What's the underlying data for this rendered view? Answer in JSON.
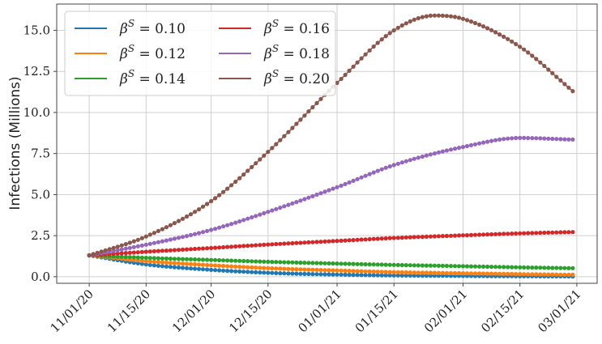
{
  "chart_data": {
    "type": "line",
    "ylabel": "Infections (Millions)",
    "xlabel": "",
    "x_tick_labels": [
      "11/01/20",
      "11/15/20",
      "12/01/20",
      "12/15/20",
      "01/01/21",
      "01/15/21",
      "02/01/21",
      "02/15/21",
      "03/01/21"
    ],
    "x_tick_dates": [
      "2020-11-01",
      "2020-11-15",
      "2020-12-01",
      "2020-12-15",
      "2021-01-01",
      "2021-01-15",
      "2021-02-01",
      "2021-02-15",
      "2021-03-01"
    ],
    "xlim": [
      "2020-10-24",
      "2021-03-06"
    ],
    "y_ticks": [
      "0.0",
      "2.5",
      "5.0",
      "7.5",
      "10.0",
      "12.5",
      "15.0"
    ],
    "ylim": [
      -0.4,
      16.6
    ],
    "grid": true,
    "legend_position": "top-left",
    "series": [
      {
        "name": "β^S = 0.10",
        "color": "#1f77b4",
        "points": [
          [
            "2020-11-01",
            1.3
          ],
          [
            "2020-11-15",
            0.75
          ],
          [
            "2020-12-01",
            0.42
          ],
          [
            "2020-12-15",
            0.24
          ],
          [
            "2021-01-01",
            0.13
          ],
          [
            "2021-01-15",
            0.08
          ],
          [
            "2021-02-01",
            0.05
          ],
          [
            "2021-02-15",
            0.03
          ],
          [
            "2021-02-28",
            0.02
          ]
        ]
      },
      {
        "name": "β^S = 0.12",
        "color": "#ff7f0e",
        "points": [
          [
            "2020-11-01",
            1.3
          ],
          [
            "2020-11-15",
            0.95
          ],
          [
            "2020-12-01",
            0.7
          ],
          [
            "2020-12-15",
            0.52
          ],
          [
            "2021-01-01",
            0.38
          ],
          [
            "2021-01-15",
            0.28
          ],
          [
            "2021-02-01",
            0.21
          ],
          [
            "2021-02-15",
            0.16
          ],
          [
            "2021-02-28",
            0.12
          ]
        ]
      },
      {
        "name": "β^S = 0.14",
        "color": "#2ca02c",
        "points": [
          [
            "2020-11-01",
            1.3
          ],
          [
            "2020-11-15",
            1.15
          ],
          [
            "2020-12-01",
            1.02
          ],
          [
            "2020-12-15",
            0.91
          ],
          [
            "2021-01-01",
            0.8
          ],
          [
            "2021-01-15",
            0.72
          ],
          [
            "2021-02-01",
            0.64
          ],
          [
            "2021-02-15",
            0.57
          ],
          [
            "2021-02-28",
            0.52
          ]
        ]
      },
      {
        "name": "β^S = 0.16",
        "color": "#d62728",
        "points": [
          [
            "2020-11-01",
            1.3
          ],
          [
            "2020-11-15",
            1.52
          ],
          [
            "2020-12-01",
            1.75
          ],
          [
            "2020-12-15",
            1.96
          ],
          [
            "2021-01-01",
            2.18
          ],
          [
            "2021-01-15",
            2.36
          ],
          [
            "2021-02-01",
            2.52
          ],
          [
            "2021-02-15",
            2.64
          ],
          [
            "2021-02-28",
            2.72
          ]
        ]
      },
      {
        "name": "β^S = 0.18",
        "color": "#9467bd",
        "points": [
          [
            "2020-11-01",
            1.3
          ],
          [
            "2020-11-15",
            1.95
          ],
          [
            "2020-12-01",
            2.85
          ],
          [
            "2020-12-15",
            3.95
          ],
          [
            "2021-01-01",
            5.45
          ],
          [
            "2021-01-15",
            6.8
          ],
          [
            "2021-02-01",
            7.9
          ],
          [
            "2021-02-15",
            8.45
          ],
          [
            "2021-02-28",
            8.35
          ]
        ]
      },
      {
        "name": "β^S = 0.20",
        "color": "#8c564b",
        "points": [
          [
            "2020-11-01",
            1.3
          ],
          [
            "2020-11-15",
            2.45
          ],
          [
            "2020-12-01",
            4.6
          ],
          [
            "2020-12-15",
            7.6
          ],
          [
            "2021-01-01",
            11.8
          ],
          [
            "2021-01-15",
            15.0
          ],
          [
            "2021-01-25",
            15.9
          ],
          [
            "2021-02-01",
            15.7
          ],
          [
            "2021-02-15",
            14.0
          ],
          [
            "2021-02-28",
            11.3
          ]
        ]
      }
    ],
    "legend": {
      "columns": 2,
      "entries": [
        {
          "symbol": "β",
          "sup": "S",
          "eq": " = 0.10",
          "color": "#1f77b4"
        },
        {
          "symbol": "β",
          "sup": "S",
          "eq": " = 0.12",
          "color": "#ff7f0e"
        },
        {
          "symbol": "β",
          "sup": "S",
          "eq": " = 0.14",
          "color": "#2ca02c"
        },
        {
          "symbol": "β",
          "sup": "S",
          "eq": " = 0.16",
          "color": "#d62728"
        },
        {
          "symbol": "β",
          "sup": "S",
          "eq": " = 0.18",
          "color": "#9467bd"
        },
        {
          "symbol": "β",
          "sup": "S",
          "eq": " = 0.20",
          "color": "#8c564b"
        }
      ]
    }
  }
}
